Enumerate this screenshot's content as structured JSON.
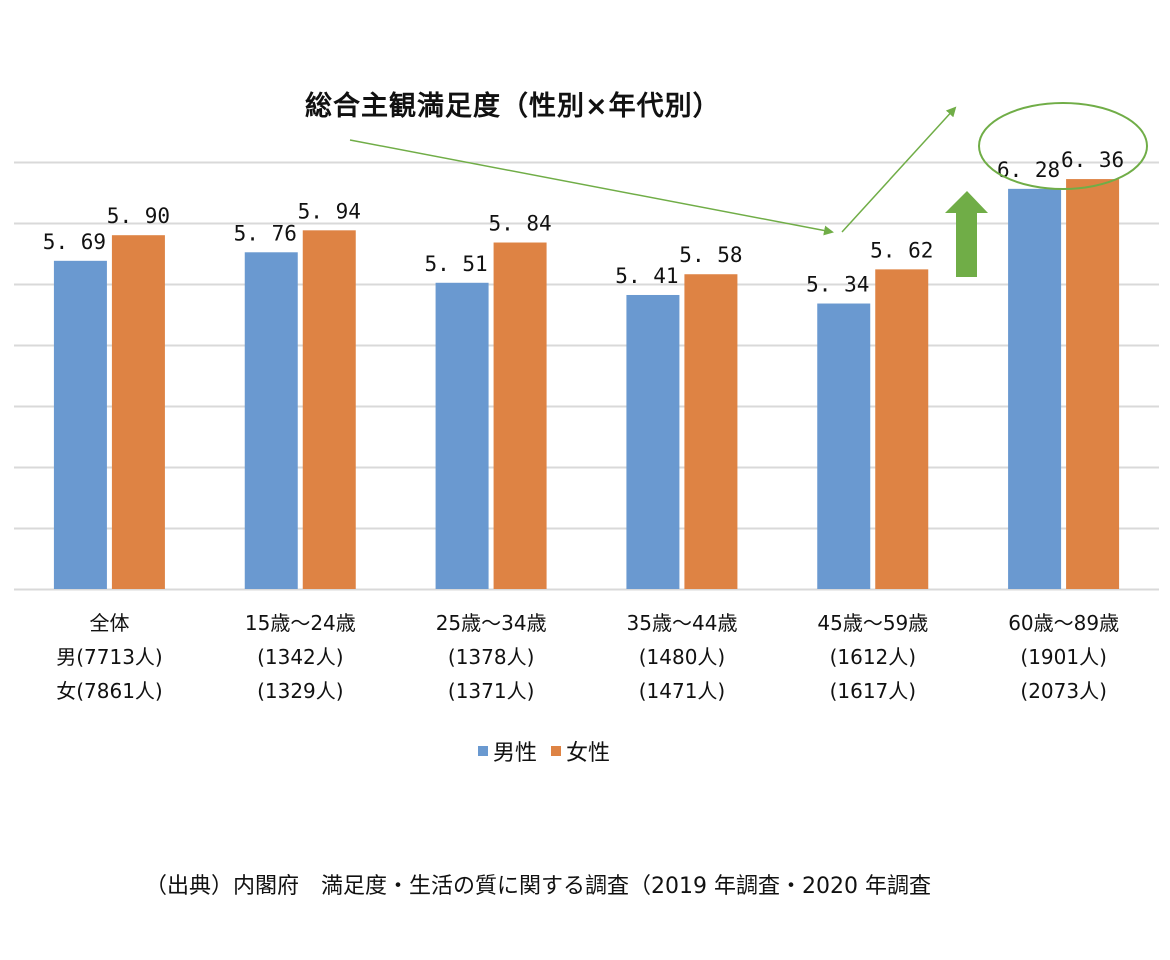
{
  "chart_data": {
    "type": "bar",
    "title": "総合主観満足度（性別×年代別）",
    "xlabel": "",
    "ylabel": "",
    "ylim": [
      3.0,
      6.5
    ],
    "ytick_step": 0.5,
    "y_tick_labels_visible": false,
    "grid": true,
    "legend_position": "bottom",
    "categories": [
      "全体",
      "15歳～24歳",
      "25歳～34歳",
      "35歳～44歳",
      "45歳～59歳",
      "60歳～89歳"
    ],
    "category_sublabels": [
      [
        "男(7713人)",
        "女(7861人)"
      ],
      [
        "(1342人)",
        "(1329人)"
      ],
      [
        "(1378人)",
        "(1371人)"
      ],
      [
        "(1480人)",
        "(1471人)"
      ],
      [
        "(1612人)",
        "(1617人)"
      ],
      [
        "(1901人)",
        "(2073人)"
      ]
    ],
    "series": [
      {
        "name": "男性",
        "color": "#6A99D0",
        "values": [
          5.69,
          5.76,
          5.51,
          5.41,
          5.34,
          6.28
        ],
        "labels": [
          "5. 69",
          "5. 76",
          "5. 51",
          "5. 41",
          "5. 34",
          "6. 28"
        ]
      },
      {
        "name": "女性",
        "color": "#DE8344",
        "values": [
          5.9,
          5.94,
          5.84,
          5.58,
          5.62,
          6.36
        ],
        "labels": [
          "5. 90",
          "5. 94",
          "5. 84",
          "5. 58",
          "5. 62",
          "6. 36"
        ]
      }
    ],
    "annotations": {
      "highlight_ellipse_category": "60歳～89歳",
      "upward_arrow_color": "#70AD47",
      "trend_arrow_color": "#70AD47",
      "trend_arrow_note": "decline to 45歳～59歳 then rise"
    }
  },
  "source_note": "（出典）内閣府　満足度・生活の質に関する調査（2019 年調査・2020 年調査"
}
